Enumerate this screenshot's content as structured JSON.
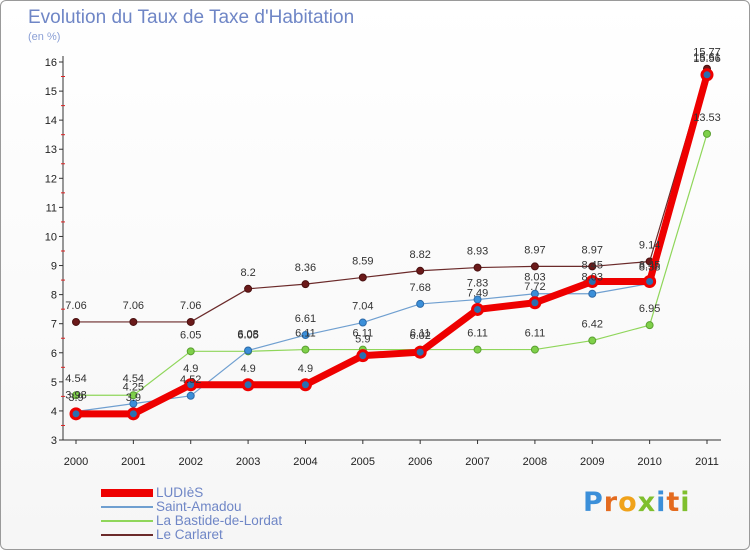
{
  "title": "Evolution du Taux de Taxe d'Habitation",
  "subtitle": "(en %)",
  "logo": {
    "letters": [
      {
        "char": "P",
        "color": "#3b8fd9"
      },
      {
        "char": "r",
        "color": "#e46b1f"
      },
      {
        "char": "o",
        "color": "#f0a21a"
      },
      {
        "char": "x",
        "color": "#7fbf2e"
      },
      {
        "char": "i",
        "color": "#3b8fd9"
      },
      {
        "char": "t",
        "color": "#e46b1f"
      },
      {
        "char": "i",
        "color": "#7fbf2e"
      }
    ]
  },
  "chart_data": {
    "type": "line",
    "title": "Evolution du Taux de Taxe d'Habitation",
    "ylabel": "(en %)",
    "xlabel": "",
    "x": [
      "2000",
      "2001",
      "2002",
      "2003",
      "2004",
      "2005",
      "2006",
      "2007",
      "2008",
      "2009",
      "2010",
      "2011"
    ],
    "ylim": [
      3,
      16
    ],
    "yticks": [
      3,
      4,
      5,
      6,
      7,
      8,
      9,
      10,
      11,
      12,
      13,
      14,
      15,
      16
    ],
    "grid": false,
    "legend_position": "bottom-left",
    "series": [
      {
        "name": "LUDIèS",
        "color": "#ee0000",
        "values": [
          3.9,
          3.9,
          4.9,
          4.9,
          4.9,
          5.9,
          6.02,
          7.49,
          7.72,
          8.45,
          8.45,
          15.56
        ]
      },
      {
        "name": "Saint-Amadou",
        "color": "#6f9fd0",
        "values": [
          3.98,
          4.25,
          4.52,
          6.08,
          6.61,
          7.04,
          7.68,
          7.83,
          8.03,
          8.03,
          8.38,
          15.61
        ]
      },
      {
        "name": "La Bastide-de-Lordat",
        "color": "#8fd65a",
        "values": [
          4.54,
          4.54,
          6.05,
          6.05,
          6.11,
          6.11,
          6.11,
          6.11,
          6.11,
          6.42,
          6.95,
          13.53
        ]
      },
      {
        "name": "Le Carlaret",
        "color": "#6b2a2a",
        "values": [
          7.06,
          7.06,
          7.06,
          8.2,
          8.36,
          8.59,
          8.82,
          8.93,
          8.97,
          8.97,
          9.14,
          15.77
        ]
      }
    ]
  }
}
